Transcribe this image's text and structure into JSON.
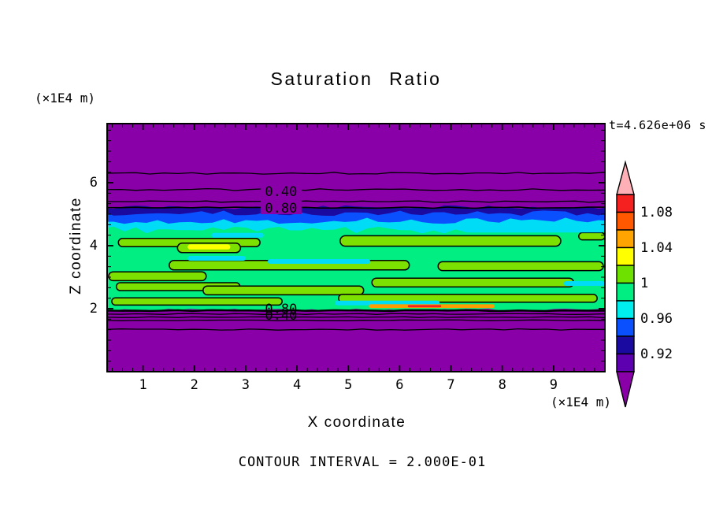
{
  "header": {
    "title": "Saturation Ratio",
    "timestamp": "t=4.626e+06 s"
  },
  "axes": {
    "x_label": "X coordinate",
    "y_label": "Z coordinate",
    "x_unit": "(×1E4 m)",
    "y_unit": "(×1E4 m)"
  },
  "footer": {
    "text": "CONTOUR INTERVAL = 2.000E-01"
  },
  "colors": {
    "under": "#8A00A8",
    "over": "#FFB0B6",
    "navy": "#1A0AA0",
    "blue": "#0B50FF",
    "cyan": "#00DCF5",
    "green": "#00EE82",
    "ch": "#7CE000",
    "cy": "#00DCF5",
    "ye": "#FFFF00",
    "or": "#FF9D00",
    "re": "#F52020"
  },
  "colorbar": {
    "vmax": 1.1,
    "vmin": 0.9,
    "step": 0.02,
    "over_color": "#FFB0B6",
    "under_color": "#8A00A8",
    "segments_top_to_bottom": [
      "#F52020",
      "#FF5800",
      "#FFA400",
      "#FFFF00",
      "#6FE100",
      "#00EE82",
      "#00EEEE",
      "#0B50FF",
      "#1A0AA0",
      "#5C00B0"
    ],
    "labels": [
      {
        "text": "1.08",
        "value": 1.08
      },
      {
        "text": "1.04",
        "value": 1.04
      },
      {
        "text": "1",
        "value": 1.0
      },
      {
        "text": "0.96",
        "value": 0.96
      },
      {
        "text": "0.92",
        "value": 0.92
      }
    ]
  },
  "chart_data": {
    "type": "heatmap",
    "subtype": "filled-contour",
    "title": "Saturation Ratio",
    "time_label": "t=4.626e+06 s",
    "xlabel": "X coordinate",
    "ylabel": "Z coordinate",
    "x_unit_scale": "x1E4 m",
    "y_unit_scale": "x1E4 m",
    "contour_interval": 0.2,
    "color_fill_interval": 0.02,
    "xlim": [
      0.3,
      10.0
    ],
    "ylim": [
      0,
      7.875
    ],
    "x_ticks": [
      1,
      2,
      3,
      4,
      5,
      6,
      7,
      8,
      9
    ],
    "y_ticks": [
      2,
      4,
      6
    ],
    "grid": false,
    "legend_position": "right-colorbar",
    "field_description": "Saturation ratio < 0.9 (purple) above z~5.2 and below z~1.95; a horizontal band between z~2 and z~5 with values rising through 0.92-0.98 (navy/blue/cyan) into ~1.0 (green) with streaks of 1.0-1.04 (yellow-green/yellow) and local spots up to 1.08+ (orange/red) near z~2.1",
    "bands": [
      {
        "color": "navy",
        "top": 5.22,
        "bottom": 4.3,
        "amp": 2.5,
        "seed": 11
      },
      {
        "color": "blue",
        "top": 5.03,
        "bottom": 4.3,
        "amp": 3.5,
        "seed": 23
      },
      {
        "color": "cyan",
        "top": 4.79,
        "bottom": 4.0,
        "amp": 4.0,
        "seed": 37
      },
      {
        "color": "green",
        "top": 4.5,
        "bottom": 1.97,
        "amp": 4.5,
        "amp_bottom": 1.2,
        "seed": 53
      }
    ],
    "streaks": [
      {
        "x0": 0.52,
        "x1": 3.28,
        "y": 4.1,
        "h": 0.26,
        "c": "ch",
        "o": 1
      },
      {
        "x0": 1.67,
        "x1": 2.9,
        "y": 3.93,
        "h": 0.3,
        "c": "ch",
        "o": 1
      },
      {
        "x0": 1.51,
        "x1": 6.19,
        "y": 3.38,
        "h": 0.3,
        "c": "ch",
        "o": 1
      },
      {
        "x0": 0.33,
        "x1": 2.23,
        "y": 3.03,
        "h": 0.28,
        "c": "ch",
        "o": 1
      },
      {
        "x0": 0.48,
        "x1": 2.89,
        "y": 2.7,
        "h": 0.25,
        "c": "ch",
        "o": 1
      },
      {
        "x0": 2.17,
        "x1": 5.3,
        "y": 2.58,
        "h": 0.28,
        "c": "ch",
        "o": 1
      },
      {
        "x0": 4.84,
        "x1": 9.14,
        "y": 4.15,
        "h": 0.33,
        "c": "ch",
        "o": 1
      },
      {
        "x0": 6.75,
        "x1": 9.97,
        "y": 3.35,
        "h": 0.28,
        "c": "ch",
        "o": 1
      },
      {
        "x0": 5.46,
        "x1": 9.39,
        "y": 2.83,
        "h": 0.28,
        "c": "ch",
        "o": 1
      },
      {
        "x0": 0.39,
        "x1": 3.71,
        "y": 2.23,
        "h": 0.23,
        "c": "ch",
        "o": 1
      },
      {
        "x0": 4.81,
        "x1": 9.85,
        "y": 2.33,
        "h": 0.25,
        "c": "ch",
        "o": 1
      },
      {
        "x0": 9.49,
        "x1": 10.0,
        "y": 4.3,
        "h": 0.23,
        "c": "ch",
        "o": 1
      },
      {
        "x0": 2.33,
        "x1": 3.35,
        "y": 4.33,
        "h": 0.15,
        "c": "cy"
      },
      {
        "x0": 1.87,
        "x1": 3.0,
        "y": 3.6,
        "h": 0.15,
        "c": "cy"
      },
      {
        "x0": 7.27,
        "x1": 10.0,
        "y": 4.53,
        "h": 0.22,
        "c": "cy"
      },
      {
        "x0": 3.43,
        "x1": 5.43,
        "y": 3.5,
        "h": 0.15,
        "c": "cy"
      },
      {
        "x0": 4.74,
        "x1": 6.78,
        "y": 2.18,
        "h": 0.15,
        "c": "cy"
      },
      {
        "x0": 9.2,
        "x1": 10.0,
        "y": 2.8,
        "h": 0.15,
        "c": "cy"
      },
      {
        "x0": 1.87,
        "x1": 2.7,
        "y": 3.96,
        "h": 0.16,
        "c": "ye"
      },
      {
        "x0": 5.4,
        "x1": 7.85,
        "y": 2.08,
        "h": 0.12,
        "c": "or"
      },
      {
        "x0": 6.16,
        "x1": 6.81,
        "y": 2.08,
        "h": 0.07,
        "c": "re"
      }
    ],
    "contour_lines": [
      {
        "y": 6.3,
        "amp": 1.2,
        "w": 1.3,
        "seed": 3
      },
      {
        "y": 5.78,
        "amp": 1.2,
        "w": 1.3,
        "seed": 5
      },
      {
        "y": 5.4,
        "amp": 1.0,
        "w": 1.3,
        "seed": 7
      },
      {
        "y": 5.21,
        "amp": 0.8,
        "w": 1.6,
        "seed": 9
      },
      {
        "y": 1.94,
        "amp": 0.6,
        "w": 2.4,
        "seed": 13
      },
      {
        "y": 1.83,
        "amp": 0.5,
        "w": 1.3,
        "seed": 15
      },
      {
        "y": 1.73,
        "amp": 0.5,
        "w": 1.3,
        "seed": 17
      },
      {
        "y": 1.63,
        "amp": 0.5,
        "w": 1.3,
        "seed": 19
      },
      {
        "y": 1.34,
        "amp": 0.8,
        "w": 1.3,
        "seed": 21
      }
    ],
    "contour_labels": [
      {
        "text": "0.40",
        "x": 3.69,
        "y": 5.73,
        "bg": true
      },
      {
        "text": "0.80",
        "x": 3.69,
        "y": 5.2,
        "bg": true
      },
      {
        "text": "0.80",
        "x": 3.69,
        "y": 2.0,
        "bg": false
      },
      {
        "text": "0.40",
        "x": 3.69,
        "y": 1.8,
        "bg": false
      }
    ]
  }
}
